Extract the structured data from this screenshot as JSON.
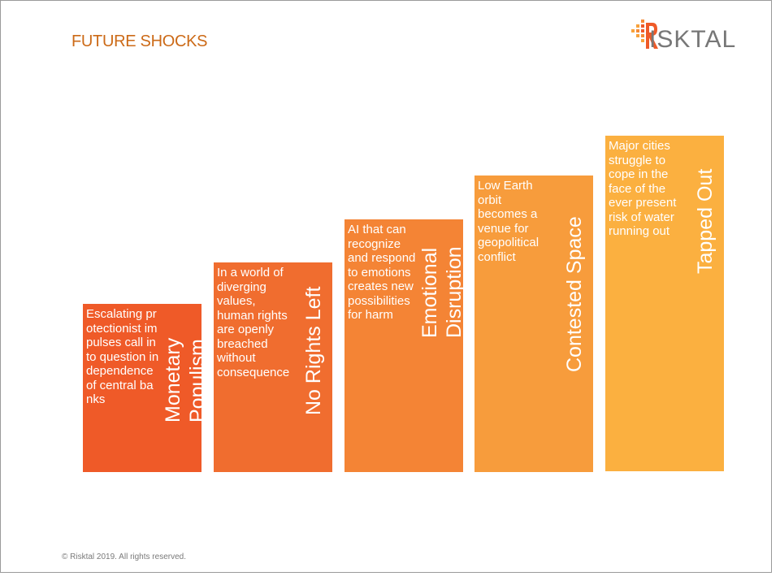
{
  "header": {
    "title": "FUTURE SHOCKS"
  },
  "logo": {
    "text": "ISKTAL",
    "mark_letter": "R"
  },
  "shocks": [
    {
      "label": "Monetary Populism",
      "description": "Escalating protectionist impulses call into question independence of central banks",
      "color": "#ef5a28"
    },
    {
      "label": "No Rights Left",
      "description": "In a world of diverging values, human rights are openly breached without consequence",
      "color": "#f06d2f"
    },
    {
      "label": "Emotional Disruption",
      "description": "AI that can recognize and respond to emotions creates new possibilities for harm",
      "color": "#f48435"
    },
    {
      "label": "Contested Space",
      "description": "Low Earth orbit becomes a venue for geopolitical conflict",
      "color": "#f79c3c"
    },
    {
      "label": "Tapped Out",
      "description": "Major cities struggle to cope in the face of the ever present risk of water running out",
      "color": "#fbb040"
    }
  ],
  "footer": {
    "copyright": "© Risktal 2019. All rights reserved."
  }
}
